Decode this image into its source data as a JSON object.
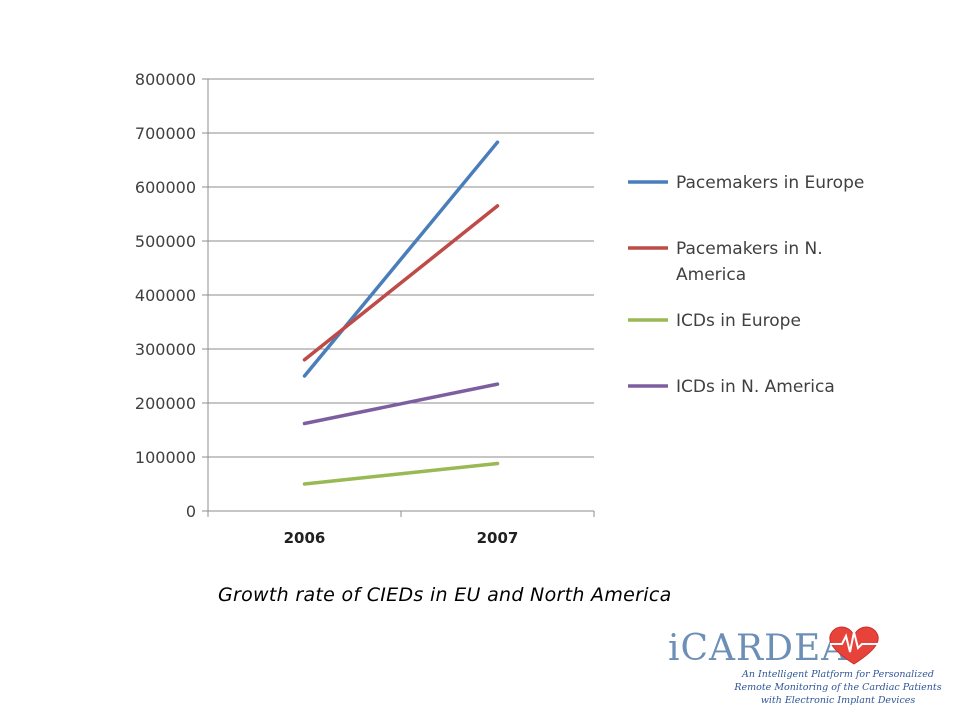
{
  "chart_data": {
    "type": "line",
    "categories": [
      "2006",
      "2007"
    ],
    "series": [
      {
        "name": "Pacemakers in Europe",
        "color": "#4a7ebb",
        "values": [
          250000,
          683000
        ]
      },
      {
        "name": "Pacemakers in N. America",
        "color": "#be4b48",
        "values": [
          280000,
          565000
        ]
      },
      {
        "name": "ICDs in Europe",
        "color": "#98b954",
        "values": [
          50000,
          88000
        ]
      },
      {
        "name": "ICDs in N. America",
        "color": "#7d5fa0",
        "values": [
          162000,
          235000
        ]
      }
    ],
    "y_ticks": [
      "0",
      "100000",
      "200000",
      "300000",
      "400000",
      "500000",
      "600000",
      "700000",
      "800000"
    ],
    "ylim": [
      0,
      800000
    ],
    "grid": true,
    "legend_position": "right"
  },
  "caption": "Growth rate of CIEDs in EU and North America",
  "logo": {
    "wordmark": "iCARDEA",
    "tagline": "An Intelligent Platform for Personalized Remote Monitoring of the Cardiac Patients with Electronic Implant Devices",
    "heart_color": "#e8433a",
    "wordmark_color": "#6d8fb6"
  }
}
